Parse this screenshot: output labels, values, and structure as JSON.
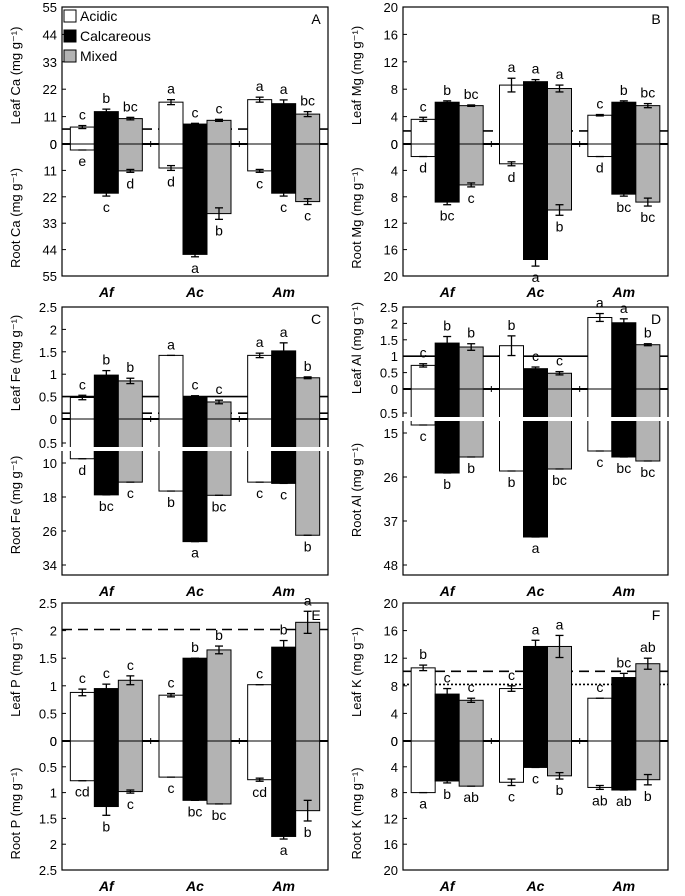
{
  "legend": {
    "items": [
      {
        "label": "Acidic",
        "color": "#ffffff"
      },
      {
        "label": "Calcareous",
        "color": "#000000"
      },
      {
        "label": "Mixed",
        "color": "#b3b3b3"
      }
    ]
  },
  "chart_data": [
    {
      "type": "bar",
      "panel": "A",
      "categories": [
        "Af",
        "Ac",
        "Am"
      ],
      "series_names": [
        "Acidic",
        "Calcareous",
        "Mixed"
      ],
      "top": {
        "ylabel": "Leaf Ca (mg g⁻¹)",
        "ticks": [
          "55",
          "44",
          "33",
          "22",
          "11",
          "0"
        ],
        "ylim": [
          0,
          55
        ],
        "values": [
          [
            6.8,
            13,
            10.2
          ],
          [
            16.8,
            8,
            9.5
          ],
          [
            17.8,
            16.2,
            12
          ]
        ],
        "errors": [
          [
            0.6,
            1,
            0.5
          ],
          [
            1,
            0.3,
            0.4
          ],
          [
            1,
            1.5,
            1
          ]
        ],
        "letters": [
          [
            "c",
            "b",
            "bc"
          ],
          [
            "a",
            "c",
            "c"
          ],
          [
            "a",
            "a",
            "bc"
          ]
        ],
        "reference": {
          "value": 6,
          "style": "dashed"
        }
      },
      "bottom": {
        "ylabel": "Root Ca (mg g⁻¹)",
        "ticks": [
          "0",
          "11",
          "22",
          "33",
          "44",
          "55"
        ],
        "ylim": [
          0,
          55
        ],
        "values": [
          [
            2.5,
            20.5,
            11.2
          ],
          [
            10,
            46,
            29
          ],
          [
            11.2,
            20.5,
            24
          ]
        ],
        "errors": [
          [
            0,
            1.2,
            0.6
          ],
          [
            1,
            1,
            2.4
          ],
          [
            0.6,
            1.2,
            1.2
          ]
        ],
        "letters": [
          [
            "e",
            "c",
            "d"
          ],
          [
            "d",
            "a",
            "b"
          ],
          [
            "c",
            "c",
            "c"
          ]
        ]
      }
    },
    {
      "type": "bar",
      "panel": "B",
      "categories": [
        "Af",
        "Ac",
        "Am"
      ],
      "series_names": [
        "Acidic",
        "Calcareous",
        "Mixed"
      ],
      "top": {
        "ylabel": "Leaf Mg (mg g⁻¹)",
        "ticks": [
          "20",
          "16",
          "12",
          "8",
          "4",
          "0"
        ],
        "ylim": [
          0,
          20
        ],
        "values": [
          [
            3.6,
            6.1,
            5.6
          ],
          [
            8.6,
            9.1,
            8.1
          ],
          [
            4.2,
            6.1,
            5.6
          ]
        ],
        "errors": [
          [
            0.3,
            0.2,
            0.1
          ],
          [
            1,
            0.3,
            0.5
          ],
          [
            0.1,
            0.2,
            0.3
          ]
        ],
        "letters": [
          [
            "c",
            "b",
            "bc"
          ],
          [
            "a",
            "a",
            "a"
          ],
          [
            "c",
            "b",
            "bc"
          ]
        ],
        "reference": {
          "value": 1.9,
          "style": "dashed"
        }
      },
      "bottom": {
        "ylabel": "Root Mg (mg g⁻¹)",
        "ticks": [
          "0",
          "4",
          "8",
          "12",
          "16",
          "20"
        ],
        "ylim": [
          0,
          20
        ],
        "values": [
          [
            1.9,
            8.8,
            6.2
          ],
          [
            3,
            17.5,
            10
          ],
          [
            1.9,
            7.6,
            8.8
          ]
        ],
        "errors": [
          [
            0,
            0.4,
            0.3
          ],
          [
            0.3,
            1,
            0.8
          ],
          [
            0,
            0.3,
            0.6
          ]
        ],
        "letters": [
          [
            "d",
            "bc",
            "c"
          ],
          [
            "d",
            "a",
            "b"
          ],
          [
            "d",
            "bc",
            "bc"
          ]
        ]
      }
    },
    {
      "type": "bar",
      "panel": "C",
      "categories": [
        "Af",
        "Ac",
        "Am"
      ],
      "series_names": [
        "Acidic",
        "Calcareous",
        "Mixed"
      ],
      "top": {
        "ylabel": "Leaf Fe (mg g⁻¹)",
        "ticks": [
          "2.5",
          "2",
          "1.5",
          "1",
          "0.5",
          "0"
        ],
        "ylim": [
          0,
          2.5
        ],
        "values": [
          [
            0.48,
            0.98,
            0.85
          ],
          [
            1.42,
            0.5,
            0.38
          ],
          [
            1.42,
            1.52,
            0.92
          ]
        ],
        "errors": [
          [
            0.05,
            0.1,
            0.06
          ],
          [
            0,
            0.02,
            0.04
          ],
          [
            0.05,
            0.18,
            0.02
          ]
        ],
        "letters": [
          [
            "c",
            "b",
            "b"
          ],
          [
            "a",
            "c",
            "c"
          ],
          [
            "a",
            "a",
            "b"
          ]
        ],
        "reference": {
          "value": 0.5,
          "style": "solid"
        },
        "reference2": {
          "value": 0.13,
          "style": "dashed"
        }
      },
      "bottom": {
        "ylabel": "Root Fe (mg g⁻¹)",
        "ticks": [
          "0.5",
          "10",
          "18",
          "26",
          "34"
        ],
        "values": [
          [
            9,
            17.5,
            14.5
          ],
          [
            16.6,
            28.5,
            17.6
          ],
          [
            14.5,
            14.8,
            27
          ]
        ],
        "letters": [
          [
            "d",
            "bc",
            "c"
          ],
          [
            "b",
            "a",
            "bc"
          ],
          [
            "c",
            "c",
            "b"
          ]
        ]
      }
    },
    {
      "type": "bar",
      "panel": "D",
      "categories": [
        "Af",
        "Ac",
        "Am"
      ],
      "series_names": [
        "Acidic",
        "Calcareous",
        "Mixed"
      ],
      "top": {
        "ylabel": "Leaf Al (mg g⁻¹)",
        "ticks": [
          "2.5",
          "2",
          "1.5",
          "1",
          "0.5",
          "0"
        ],
        "ylim": [
          0,
          2.5
        ],
        "values": [
          [
            0.72,
            1.4,
            1.28
          ],
          [
            1.32,
            0.62,
            0.48
          ],
          [
            2.18,
            2.02,
            1.35
          ]
        ],
        "errors": [
          [
            0.05,
            0.2,
            0.1
          ],
          [
            0.3,
            0.05,
            0.05
          ],
          [
            0.12,
            0.12,
            0.03
          ]
        ],
        "letters": [
          [
            "c",
            "b",
            "b"
          ],
          [
            "b",
            "c",
            "c"
          ],
          [
            "a",
            "a",
            "b"
          ]
        ],
        "reference": {
          "value": 1,
          "style": "solid"
        }
      },
      "bottom": {
        "ylabel": "Root Al (mg g⁻¹)",
        "ticks": [
          "0.5",
          "15",
          "26",
          "37",
          "48"
        ],
        "values": [
          [
            13,
            25,
            21
          ],
          [
            24.5,
            41,
            24
          ],
          [
            19.5,
            21,
            22
          ]
        ],
        "letters": [
          [
            "c",
            "b",
            "b"
          ],
          [
            "b",
            "a",
            "bc"
          ],
          [
            "c",
            "bc",
            "bc"
          ]
        ]
      }
    },
    {
      "type": "bar",
      "panel": "E",
      "categories": [
        "Af",
        "Ac",
        "Am"
      ],
      "series_names": [
        "Acidic",
        "Calcareous",
        "Mixed"
      ],
      "top": {
        "ylabel": "Leaf P (mg g⁻¹)",
        "ticks": [
          "2.5",
          "2",
          "1.5",
          "1",
          "0.5",
          "0"
        ],
        "ylim": [
          0,
          2.5
        ],
        "values": [
          [
            0.88,
            0.95,
            1.1
          ],
          [
            0.83,
            1.5,
            1.65
          ],
          [
            1.02,
            1.7,
            2.15
          ]
        ],
        "errors": [
          [
            0.06,
            0.08,
            0.08
          ],
          [
            0.03,
            0,
            0.07
          ],
          [
            0,
            0.12,
            0.2
          ]
        ],
        "letters": [
          [
            "c",
            "c",
            "c"
          ],
          [
            "c",
            "b",
            "b"
          ],
          [
            "c",
            "b",
            "a"
          ]
        ],
        "reference": {
          "value": 2.02,
          "style": "dashed"
        }
      },
      "bottom": {
        "ylabel": "Root P (mg g⁻¹)",
        "ticks": [
          "0",
          "0.5",
          "1",
          "1.5",
          "2",
          "2.5"
        ],
        "ylim": [
          0,
          2.5
        ],
        "values": [
          [
            0.77,
            1.27,
            0.98
          ],
          [
            0.7,
            1.15,
            1.22
          ],
          [
            0.75,
            1.85,
            1.35
          ]
        ],
        "errors": [
          [
            0,
            0.17,
            0.03
          ],
          [
            0,
            0,
            0
          ],
          [
            0.03,
            0.05,
            0.2
          ]
        ],
        "letters": [
          [
            "cd",
            "b",
            "c"
          ],
          [
            "c",
            "bc",
            "bc"
          ],
          [
            "cd",
            "a",
            "b"
          ]
        ]
      }
    },
    {
      "type": "bar",
      "panel": "F",
      "categories": [
        "Af",
        "Ac",
        "Am"
      ],
      "series_names": [
        "Acidic",
        "Calcareous",
        "Mixed"
      ],
      "top": {
        "ylabel": "Leaf K (mg g⁻¹)",
        "ticks": [
          "20",
          "16",
          "12",
          "8",
          "4",
          "0"
        ],
        "ylim": [
          0,
          20
        ],
        "values": [
          [
            10.6,
            6.8,
            5.9
          ],
          [
            7.6,
            13.7,
            13.7
          ],
          [
            6.2,
            9.2,
            11.2
          ]
        ],
        "errors": [
          [
            0.4,
            0.8,
            0.3
          ],
          [
            0.4,
            0.9,
            1.6
          ],
          [
            0,
            0.6,
            0.8
          ]
        ],
        "letters": [
          [
            "b",
            "c",
            "c"
          ],
          [
            "c",
            "a",
            "a"
          ],
          [
            "c",
            "bc",
            "ab"
          ]
        ],
        "reference": {
          "value": 10.1,
          "style": "dashed"
        },
        "reference2": {
          "value": 8.2,
          "style": "dotted"
        }
      },
      "bottom": {
        "ylabel": "Root K (mg g⁻¹)",
        "ticks": [
          "0",
          "4",
          "8",
          "12",
          "16",
          "20"
        ],
        "ylim": [
          0,
          20
        ],
        "values": [
          [
            8,
            6.2,
            7
          ],
          [
            6.4,
            4.1,
            5.4
          ],
          [
            7.2,
            7.6,
            6
          ]
        ],
        "errors": [
          [
            0,
            0.3,
            0
          ],
          [
            0.5,
            0,
            0.5
          ],
          [
            0.3,
            0,
            0.8
          ]
        ],
        "letters": [
          [
            "a",
            "b",
            "ab"
          ],
          [
            "c",
            "c",
            "b"
          ],
          [
            "ab",
            "ab",
            "b"
          ]
        ]
      }
    }
  ]
}
